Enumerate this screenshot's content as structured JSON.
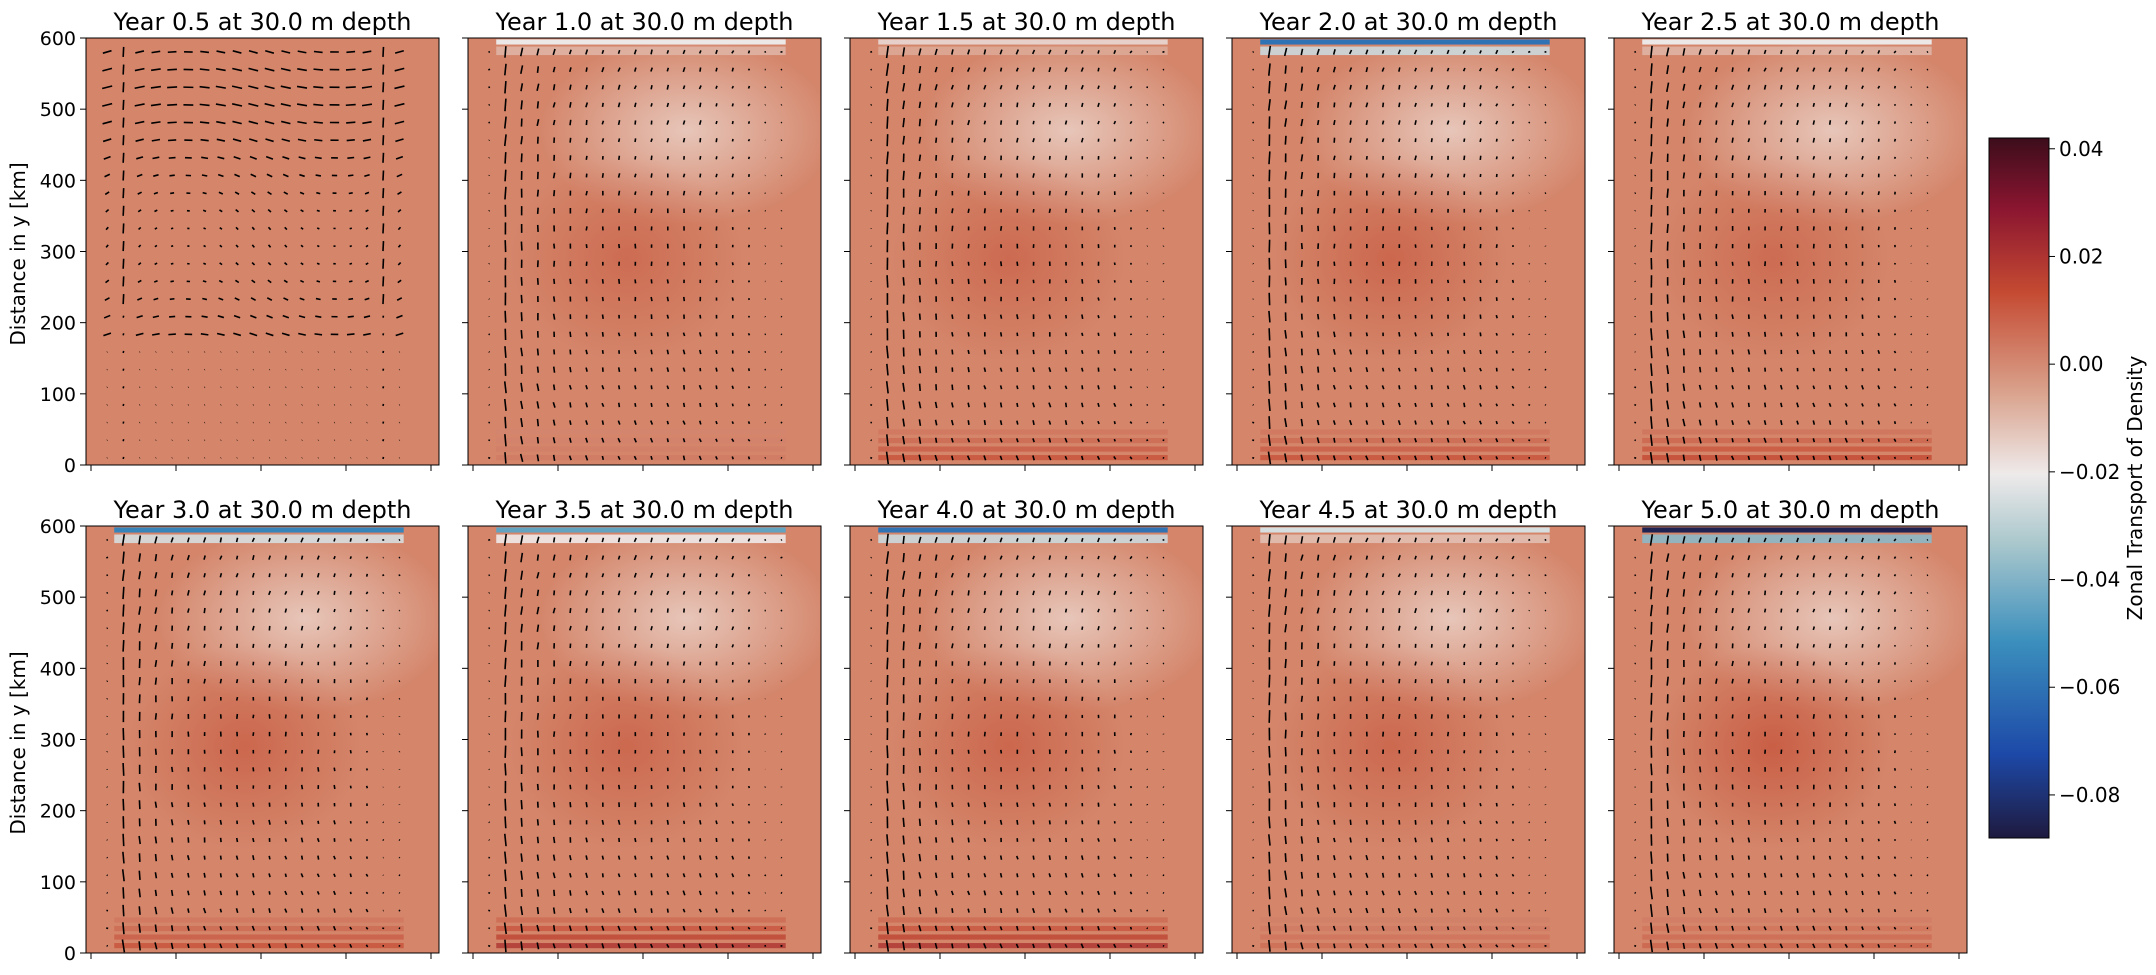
{
  "figure": {
    "ylabel": "Distance in y [km]",
    "colorbar_label": "Zonal Transport of Density"
  },
  "chart_data": {
    "type": "heatmap",
    "layout": "2x5 grid of panels",
    "colormap": [
      "#1e1a3e",
      "#1d49a8",
      "#3b8fbd",
      "#a9c7cc",
      "#eeeaea",
      "#d9a08a",
      "#c54a32",
      "#8a1530",
      "#3c0d1b"
    ],
    "background_color": "#d4856a",
    "ylim": [
      0,
      600
    ],
    "yticks": [
      "0",
      "100",
      "200",
      "300",
      "400",
      "500",
      "600"
    ],
    "colorbar": {
      "range": [
        -0.088,
        0.042
      ],
      "ticks": [
        "0.04",
        "0.02",
        "0.00",
        "−0.02",
        "−0.04",
        "−0.06",
        "−0.08"
      ],
      "tick_values": [
        0.04,
        0.02,
        0.0,
        -0.02,
        -0.04,
        -0.06,
        -0.08
      ],
      "placement": "right"
    },
    "panels": [
      {
        "title": "Year 0.5 at 30.0 m depth",
        "top_band": 0.0,
        "bottom_band": 0.0,
        "center_intensity": 0.002
      },
      {
        "title": "Year 1.0 at 30.0 m depth",
        "top_band": -0.02,
        "bottom_band": 0.003,
        "center_intensity": 0.006
      },
      {
        "title": "Year 1.5 at 30.0 m depth",
        "top_band": -0.015,
        "bottom_band": 0.012,
        "center_intensity": 0.007
      },
      {
        "title": "Year 2.0 at 30.0 m depth",
        "top_band": -0.06,
        "bottom_band": 0.012,
        "center_intensity": 0.009
      },
      {
        "title": "Year 2.5 at 30.0 m depth",
        "top_band": -0.02,
        "bottom_band": 0.014,
        "center_intensity": 0.006
      },
      {
        "title": "Year 3.0 at 30.0 m depth",
        "top_band": -0.055,
        "bottom_band": 0.012,
        "center_intensity": 0.009
      },
      {
        "title": "Year 3.5 at 30.0 m depth",
        "top_band": -0.045,
        "bottom_band": 0.02,
        "center_intensity": 0.008
      },
      {
        "title": "Year 4.0 at 30.0 m depth",
        "top_band": -0.06,
        "bottom_band": 0.02,
        "center_intensity": 0.009
      },
      {
        "title": "Year 4.5 at 30.0 m depth",
        "top_band": -0.025,
        "bottom_band": 0.006,
        "center_intensity": 0.008
      },
      {
        "title": "Year 5.0 at 30.0 m depth",
        "top_band": -0.085,
        "bottom_band": 0.008,
        "center_intensity": 0.014
      }
    ]
  }
}
